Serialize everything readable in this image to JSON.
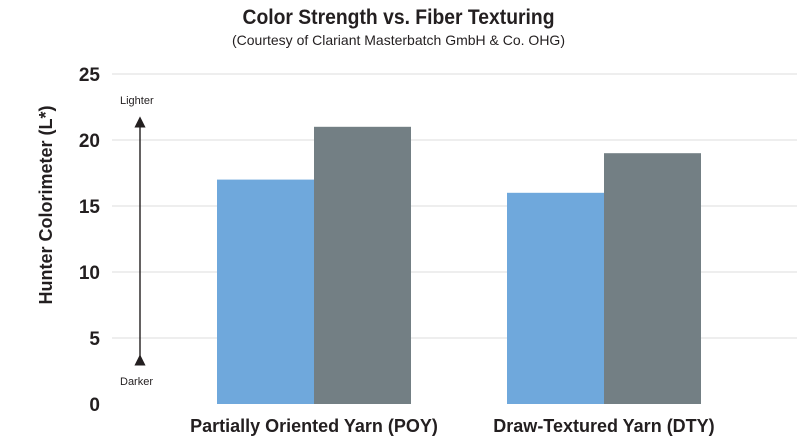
{
  "chart_data": {
    "type": "bar",
    "title": "Color Strength vs. Fiber Texturing",
    "subtitle": "(Courtesy of Clariant Masterbatch GmbH & Co. OHG)",
    "ylabel": "Hunter Colorimeter (L*)",
    "xlabel": "",
    "categories": [
      "Partially Oriented Yarn (POY)",
      "Draw-Textured Yarn (DTY)"
    ],
    "series": [
      {
        "color": "#6fa8dc",
        "values": [
          17,
          16
        ]
      },
      {
        "color": "#737f84",
        "values": [
          21,
          19
        ]
      }
    ],
    "ylim": [
      0,
      25
    ],
    "yticks": [
      0,
      5,
      10,
      15,
      20,
      25
    ],
    "grid": true,
    "legend": "none",
    "annotations": {
      "top": "Lighter",
      "bottom": "Darker"
    },
    "gridline_color": "#dcdcdc"
  }
}
